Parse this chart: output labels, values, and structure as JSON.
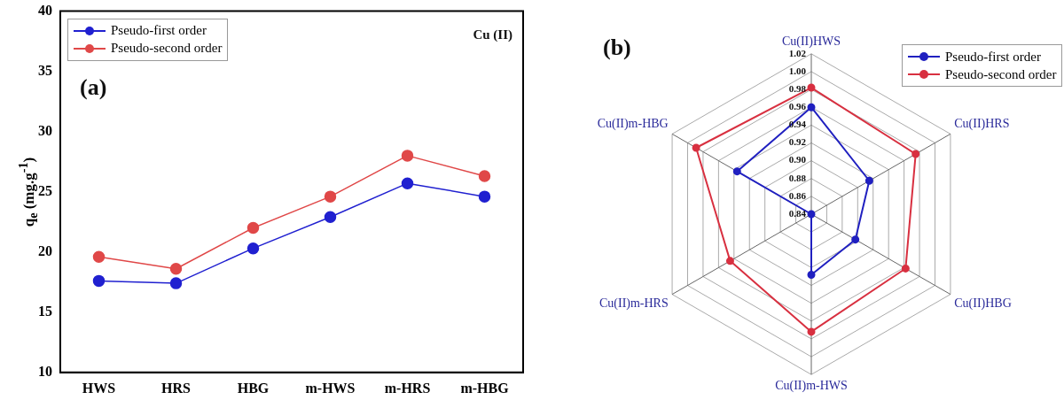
{
  "chart_data": [
    {
      "type": "line",
      "ylabel": "q$_{e}$ (mg.g$^{-1}$)",
      "categories": [
        "HWS",
        "HRS",
        "HBG",
        "m-HWS",
        "m-HRS",
        "m-HBG"
      ],
      "series": [
        {
          "name": "Pseudo-first order",
          "color": "#2020d0",
          "values": [
            17.6,
            17.4,
            20.3,
            22.9,
            25.7,
            24.6
          ]
        },
        {
          "name": "Pseudo-second order",
          "color": "#e04848",
          "values": [
            19.6,
            18.6,
            22.0,
            24.6,
            28.0,
            26.3
          ]
        }
      ],
      "ylim": [
        10,
        40
      ],
      "yticks": [
        10,
        15,
        20,
        25,
        30,
        35,
        40
      ],
      "legend": "top left",
      "marker": "circle",
      "grid": false,
      "annotations": [
        "Cu (II)",
        "(a)"
      ]
    },
    {
      "type": "radar",
      "categories": [
        "Cu(II)HWS",
        "Cu(II)HRS",
        "Cu(II)HBG",
        "Cu(II)m-HWS",
        "Cu(II)m-HRS",
        "Cu(II)m-HBG"
      ],
      "series": [
        {
          "name": "Pseudo-first order",
          "color": "#2020c0",
          "values": [
            0.96,
            0.915,
            0.897,
            0.908,
            0.84,
            0.936
          ]
        },
        {
          "name": "Pseudo-second order",
          "color": "#d83040",
          "values": [
            0.982,
            0.975,
            0.962,
            0.972,
            0.945,
            0.989
          ]
        }
      ],
      "ylim": [
        0.84,
        1.02
      ],
      "yticks": [
        {
          "value": 0.84,
          "label": "0.84"
        },
        {
          "value": 0.86,
          "label": "0.86"
        },
        {
          "value": 0.88,
          "label": "0.88"
        },
        {
          "value": 0.9,
          "label": "0.90"
        },
        {
          "value": 0.92,
          "label": "0.92"
        },
        {
          "value": 0.94,
          "label": "0.94"
        },
        {
          "value": 0.96,
          "label": "0.96"
        },
        {
          "value": 0.98,
          "label": "0.98"
        },
        {
          "value": 1.0,
          "label": "1.00"
        },
        {
          "value": 1.02,
          "label": "1.02"
        }
      ],
      "legend": "top right",
      "marker": "circle",
      "grid": true,
      "annotations": [
        "(b)"
      ]
    }
  ]
}
